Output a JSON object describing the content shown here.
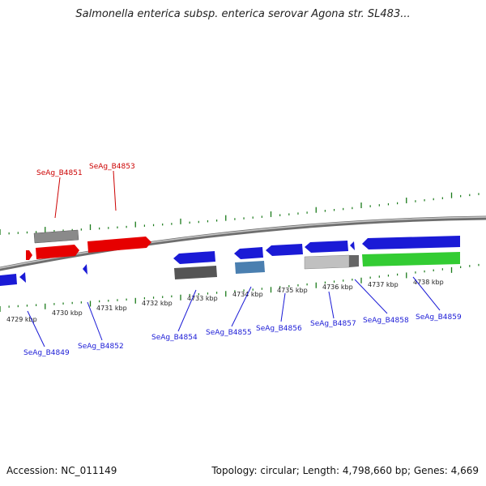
{
  "title": "Salmonella enterica subsp. enterica serovar Agona str. SL483...",
  "footer": {
    "accession": "Accession: NC_011149",
    "topology": "Topology: circular; Length: 4,798,660 bp; Genes: 4,669"
  },
  "colors": {
    "forward_gene": "#e60000",
    "reverse_gene": "#1a1ad6",
    "gray_gene": "#555555",
    "light_gray_gene": "#c0c0c0",
    "steel_gene": "#4a7fb0",
    "green_gene": "#33cc33",
    "tick": "#1a7a1a",
    "backbone": "#8a8a8a"
  },
  "kbp_labels": [
    "4729 kbp",
    "4730 kbp",
    "4731 kbp",
    "4732 kbp",
    "4733 kbp",
    "4734 kbp",
    "4735 kbp",
    "4736 kbp",
    "4737 kbp",
    "4738 kbp"
  ],
  "gene_labels_top": [
    "SeAg_B4851",
    "SeAg_B4853"
  ],
  "gene_labels_bottom": [
    "SeAg_B4849",
    "SeAg_B4852",
    "SeAg_B4854",
    "SeAg_B4855",
    "SeAg_B4856",
    "SeAg_B4857",
    "SeAg_B4858",
    "SeAg_B4859"
  ]
}
